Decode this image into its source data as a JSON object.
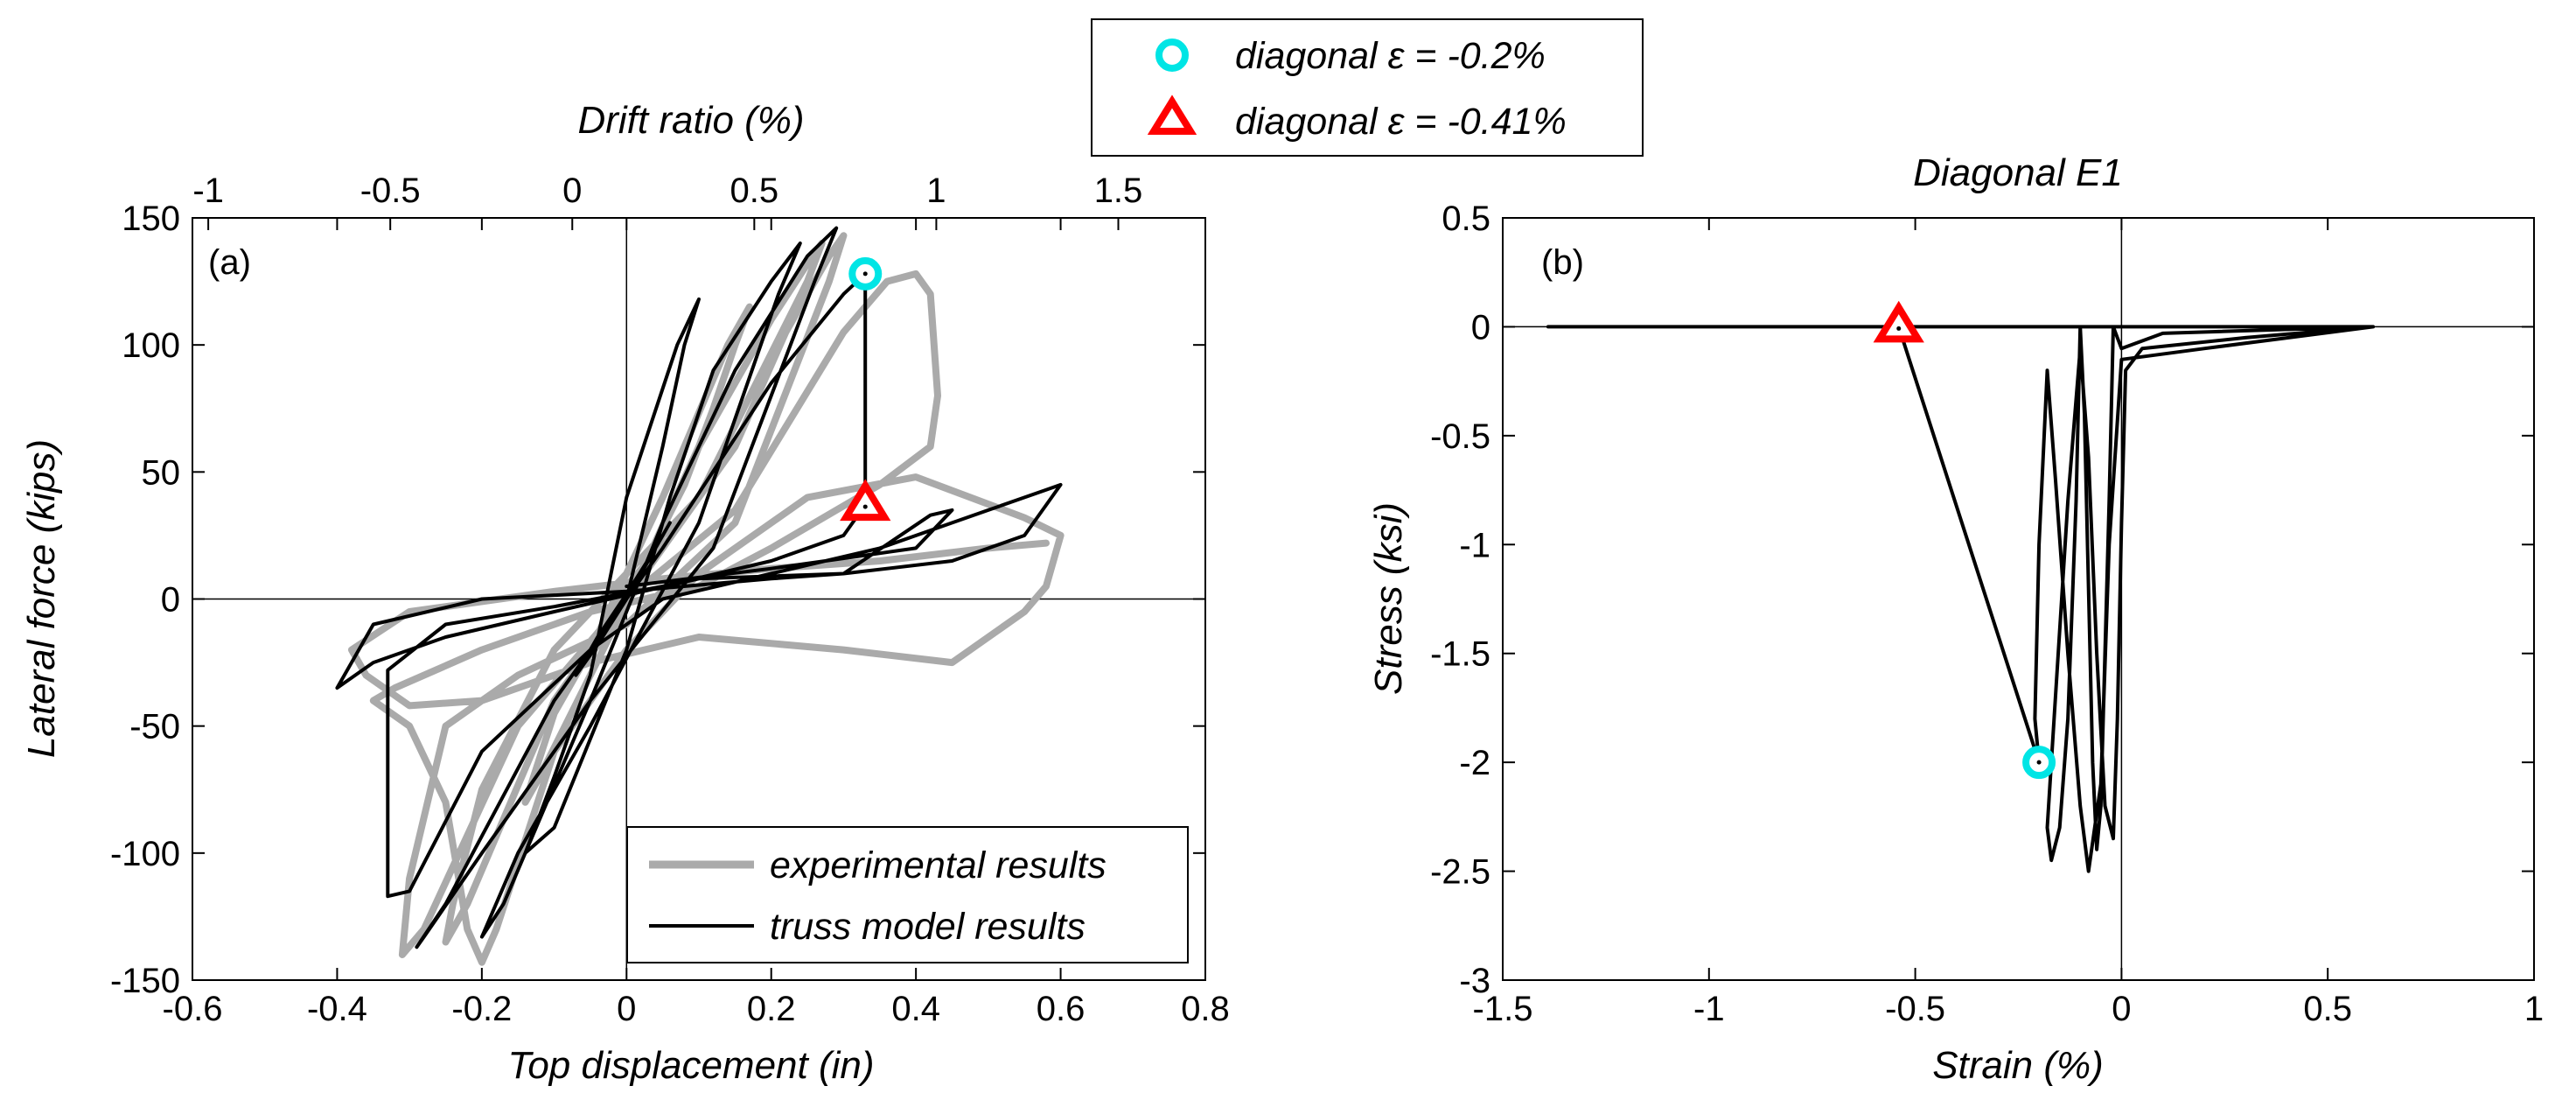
{
  "top_legend": {
    "items": [
      {
        "label": "diagonal ε = -0.2%",
        "color": "#00e5e5",
        "marker": "circle"
      },
      {
        "label": "diagonal ε = -0.41%",
        "color": "#ff0000",
        "marker": "triangle"
      }
    ]
  },
  "chart_data": [
    {
      "type": "line",
      "panel_label": "(a)",
      "xlabel": "Top displacement (in)",
      "ylabel": "Lateral force (kips)",
      "x2label": "Drift ratio (%)",
      "xlim": [
        -0.6,
        0.8
      ],
      "ylim": [
        -150,
        150
      ],
      "x2lim": [
        -1.0435,
        1.7391
      ],
      "xticks": [
        -0.6,
        -0.4,
        -0.2,
        0,
        0.2,
        0.4,
        0.6,
        0.8
      ],
      "xtick_labels": [
        "-0.6",
        "-0.4",
        "-0.2",
        "0",
        "0.2",
        "0.4",
        "0.6",
        "0.8"
      ],
      "yticks": [
        -150,
        -100,
        -50,
        0,
        50,
        100,
        150
      ],
      "ytick_labels": [
        "-150",
        "-100",
        "-50",
        "0",
        "50",
        "100",
        "150"
      ],
      "x2ticks": [
        -1,
        -0.5,
        0,
        0.5,
        1,
        1.5
      ],
      "x2tick_labels": [
        "-1",
        "-0.5",
        "0",
        "0.5",
        "1",
        "1.5"
      ],
      "zero_lines": true,
      "legend": {
        "placement": "bottom-right",
        "entries": [
          "experimental results",
          "truss model results"
        ]
      },
      "series": [
        {
          "name": "experimental results",
          "color": "#aaaaaa",
          "width": 8,
          "points": [
            [
              0,
              0
            ],
            [
              0.02,
              10
            ],
            [
              0.05,
              25
            ],
            [
              0.03,
              15
            ],
            [
              0,
              5
            ],
            [
              -0.03,
              -10
            ],
            [
              -0.06,
              -25
            ],
            [
              -0.03,
              -15
            ],
            [
              0,
              0
            ],
            [
              0.08,
              45
            ],
            [
              0.12,
              75
            ],
            [
              0.15,
              100
            ],
            [
              0.17,
              115
            ],
            [
              0.14,
              100
            ],
            [
              0.05,
              40
            ],
            [
              -0.05,
              -20
            ],
            [
              -0.1,
              -45
            ],
            [
              -0.14,
              -80
            ],
            [
              -0.12,
              -70
            ],
            [
              -0.05,
              -30
            ],
            [
              0.02,
              10
            ],
            [
              0.1,
              60
            ],
            [
              0.2,
              110
            ],
            [
              0.25,
              132
            ],
            [
              0.27,
              140
            ],
            [
              0.25,
              125
            ],
            [
              0.1,
              40
            ],
            [
              -0.1,
              -20
            ],
            [
              -0.2,
              -75
            ],
            [
              -0.24,
              -120
            ],
            [
              -0.25,
              -135
            ],
            [
              -0.22,
              -120
            ],
            [
              -0.1,
              -40
            ],
            [
              0.05,
              20
            ],
            [
              0.15,
              60
            ],
            [
              0.22,
              105
            ],
            [
              0.28,
              135
            ],
            [
              0.3,
              143
            ],
            [
              0.28,
              125
            ],
            [
              0.15,
              30
            ],
            [
              0,
              -10
            ],
            [
              -0.15,
              -30
            ],
            [
              -0.25,
              -50
            ],
            [
              -0.3,
              -110
            ],
            [
              -0.31,
              -140
            ],
            [
              -0.28,
              -130
            ],
            [
              -0.15,
              -50
            ],
            [
              0,
              0
            ],
            [
              0.15,
              35
            ],
            [
              0.3,
              105
            ],
            [
              0.36,
              125
            ],
            [
              0.4,
              128
            ],
            [
              0.42,
              120
            ],
            [
              0.43,
              80
            ],
            [
              0.42,
              60
            ],
            [
              0.35,
              45
            ],
            [
              0.2,
              20
            ],
            [
              0.1,
              5
            ],
            [
              -0.05,
              -5
            ],
            [
              -0.2,
              -20
            ],
            [
              -0.32,
              -35
            ],
            [
              -0.35,
              -40
            ],
            [
              -0.3,
              -50
            ],
            [
              -0.25,
              -80
            ],
            [
              -0.22,
              -130
            ],
            [
              -0.2,
              -143
            ],
            [
              -0.18,
              -130
            ],
            [
              -0.1,
              -60
            ],
            [
              0,
              -20
            ],
            [
              0.1,
              10
            ],
            [
              0.25,
              40
            ],
            [
              0.4,
              48
            ],
            [
              0.55,
              32
            ],
            [
              0.6,
              25
            ],
            [
              0.58,
              5
            ],
            [
              0.55,
              -5
            ],
            [
              0.45,
              -25
            ],
            [
              0.3,
              -20
            ],
            [
              0.1,
              -15
            ],
            [
              -0.05,
              -25
            ],
            [
              -0.2,
              -40
            ],
            [
              -0.3,
              -42
            ],
            [
              -0.36,
              -30
            ],
            [
              -0.38,
              -20
            ],
            [
              -0.3,
              -5
            ],
            [
              -0.1,
              3
            ],
            [
              0.05,
              8
            ],
            [
              0.2,
              12
            ],
            [
              0.35,
              15
            ],
            [
              0.5,
              20
            ],
            [
              0.58,
              22
            ]
          ]
        },
        {
          "name": "truss model results",
          "color": "#000000",
          "width": 4,
          "points": [
            [
              0,
              0
            ],
            [
              0.03,
              15
            ],
            [
              0.06,
              30
            ],
            [
              0.04,
              20
            ],
            [
              0,
              2
            ],
            [
              -0.04,
              -15
            ],
            [
              -0.07,
              -30
            ],
            [
              -0.04,
              -18
            ],
            [
              0,
              0
            ],
            [
              0.05,
              60
            ],
            [
              0.08,
              100
            ],
            [
              0.1,
              118
            ],
            [
              0.07,
              100
            ],
            [
              0,
              40
            ],
            [
              -0.05,
              -30
            ],
            [
              -0.1,
              -70
            ],
            [
              -0.14,
              -100
            ],
            [
              -0.1,
              -90
            ],
            [
              0,
              -20
            ],
            [
              0.06,
              40
            ],
            [
              0.12,
              90
            ],
            [
              0.2,
              125
            ],
            [
              0.24,
              140
            ],
            [
              0.21,
              120
            ],
            [
              0.1,
              30
            ],
            [
              -0.05,
              -50
            ],
            [
              -0.15,
              -100
            ],
            [
              -0.2,
              -133
            ],
            [
              -0.17,
              -120
            ],
            [
              -0.05,
              -40
            ],
            [
              0.05,
              30
            ],
            [
              0.15,
              90
            ],
            [
              0.25,
              135
            ],
            [
              0.29,
              146
            ],
            [
              0.26,
              125
            ],
            [
              0.12,
              20
            ],
            [
              -0.05,
              -40
            ],
            [
              -0.2,
              -100
            ],
            [
              -0.28,
              -133
            ],
            [
              -0.29,
              -137
            ],
            [
              -0.25,
              -120
            ],
            [
              -0.1,
              -40
            ],
            [
              0.05,
              20
            ],
            [
              0.2,
              85
            ],
            [
              0.3,
              120
            ],
            [
              0.33,
              128
            ],
            [
              0.33,
              37
            ],
            [
              0.3,
              25
            ],
            [
              0.2,
              15
            ],
            [
              0.05,
              5
            ],
            [
              -0.1,
              -3
            ],
            [
              -0.25,
              -10
            ],
            [
              -0.33,
              -28
            ],
            [
              -0.33,
              -117
            ],
            [
              -0.3,
              -115
            ],
            [
              -0.2,
              -60
            ],
            [
              -0.05,
              -20
            ],
            [
              0.05,
              0
            ],
            [
              0.2,
              10
            ],
            [
              0.35,
              20
            ],
            [
              0.45,
              30
            ],
            [
              0.5,
              35
            ],
            [
              0.58,
              43
            ],
            [
              0.6,
              45
            ],
            [
              0.55,
              25
            ],
            [
              0.45,
              15
            ],
            [
              0.3,
              10
            ],
            [
              0.1,
              8
            ],
            [
              -0.1,
              -5
            ],
            [
              -0.25,
              -15
            ],
            [
              -0.35,
              -25
            ],
            [
              -0.4,
              -35
            ],
            [
              -0.35,
              -10
            ],
            [
              -0.2,
              0
            ],
            [
              0,
              3
            ],
            [
              0.2,
              8
            ],
            [
              0.3,
              10
            ],
            [
              0.42,
              33
            ],
            [
              0.45,
              35
            ],
            [
              0.4,
              20
            ],
            [
              0.2,
              12
            ],
            [
              0,
              5
            ]
          ]
        }
      ],
      "markers": [
        {
          "x": 0.33,
          "y": 128,
          "shape": "circle",
          "color": "#00e5e5"
        },
        {
          "x": 0.33,
          "y": 37,
          "shape": "triangle",
          "color": "#ff0000"
        }
      ]
    },
    {
      "type": "line",
      "panel_label": "(b)",
      "title": "Diagonal E1",
      "xlabel": "Strain (%)",
      "ylabel": "Stress (ksi)",
      "xlim": [
        -1.5,
        1
      ],
      "ylim": [
        -3,
        0.5
      ],
      "xticks": [
        -1.5,
        -1,
        -0.5,
        0,
        0.5,
        1
      ],
      "xtick_labels": [
        "-1.5",
        "-1",
        "-0.5",
        "0",
        "0.5",
        "1"
      ],
      "yticks": [
        -3,
        -2.5,
        -2,
        -1.5,
        -1,
        -0.5,
        0,
        0.5
      ],
      "ytick_labels": [
        "-3",
        "-2.5",
        "-2",
        "-1.5",
        "-1",
        "-0.5",
        "0",
        "0.5"
      ],
      "zero_lines": true,
      "series": [
        {
          "color": "#000000",
          "width": 4,
          "points": [
            [
              -1.39,
              0
            ],
            [
              0.61,
              0
            ],
            [
              0.1,
              -0.03
            ],
            [
              0,
              -0.1
            ],
            [
              -0.01,
              -0.05
            ],
            [
              -0.02,
              0
            ],
            [
              -0.03,
              -0.8
            ],
            [
              -0.04,
              -1.5
            ],
            [
              -0.05,
              -2.2
            ],
            [
              -0.06,
              -2.4
            ],
            [
              -0.07,
              -2.0
            ],
            [
              -0.08,
              -1.2
            ],
            [
              -0.09,
              -0.4
            ],
            [
              -0.1,
              0
            ],
            [
              -0.11,
              -0.8
            ],
            [
              -0.13,
              -1.8
            ],
            [
              -0.15,
              -2.3
            ],
            [
              -0.17,
              -2.45
            ],
            [
              -0.18,
              -2.3
            ],
            [
              -0.16,
              -1.7
            ],
            [
              -0.13,
              -0.8
            ],
            [
              -0.1,
              -0.1
            ],
            [
              -0.08,
              -0.6
            ],
            [
              -0.06,
              -1.5
            ],
            [
              -0.04,
              -2.2
            ],
            [
              -0.02,
              -2.35
            ],
            [
              -0.01,
              -1.8
            ],
            [
              0,
              -0.9
            ],
            [
              0.01,
              -0.2
            ],
            [
              0.05,
              -0.1
            ],
            [
              0.3,
              -0.05
            ],
            [
              0.61,
              0
            ],
            [
              0.2,
              -0.1
            ],
            [
              0,
              -0.15
            ],
            [
              -0.03,
              -1.0
            ],
            [
              -0.05,
              -2.1
            ],
            [
              -0.08,
              -2.5
            ],
            [
              -0.1,
              -2.2
            ],
            [
              -0.13,
              -1.5
            ],
            [
              -0.16,
              -0.7
            ],
            [
              -0.18,
              -0.2
            ],
            [
              -0.2,
              -1.0
            ],
            [
              -0.21,
              -1.8
            ],
            [
              -0.2,
              -2.0
            ],
            [
              -0.54,
              0
            ]
          ]
        }
      ],
      "markers": [
        {
          "x": -0.2,
          "y": -2.0,
          "shape": "circle",
          "color": "#00e5e5"
        },
        {
          "x": -0.54,
          "y": 0.0,
          "shape": "triangle",
          "color": "#ff0000"
        }
      ]
    }
  ]
}
